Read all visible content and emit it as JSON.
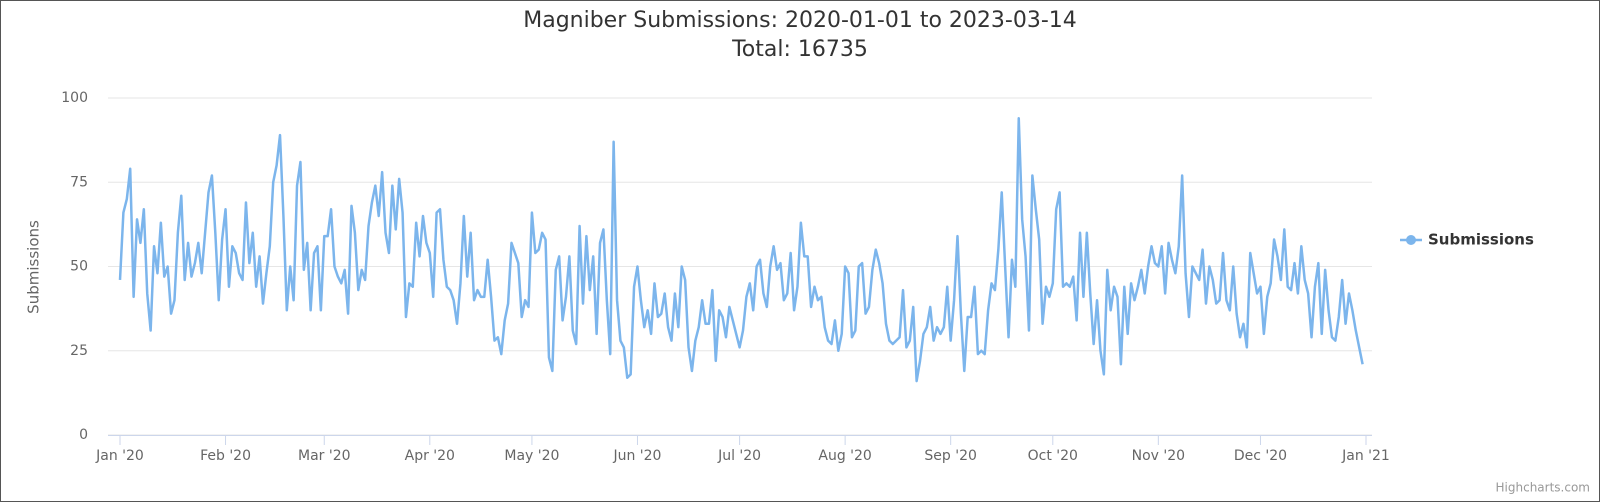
{
  "chart_data": {
    "type": "line",
    "title": "Magniber Submissions: 2020-01-01 to 2023-03-14",
    "subtitle": "Total: 16735",
    "y_label": "Submissions",
    "credits": "Highcharts.com",
    "legend": "right",
    "grid": true,
    "ylim": [
      0,
      100
    ],
    "yticks": [
      0,
      25,
      50,
      75,
      100
    ],
    "xlim": [
      0,
      366
    ],
    "xticks": [
      {
        "value": 0,
        "label": "Jan '20"
      },
      {
        "value": 31,
        "label": "Feb '20"
      },
      {
        "value": 60,
        "label": "Mar '20"
      },
      {
        "value": 91,
        "label": "Apr '20"
      },
      {
        "value": 121,
        "label": "May '20"
      },
      {
        "value": 152,
        "label": "Jun '20"
      },
      {
        "value": 182,
        "label": "Jul '20"
      },
      {
        "value": 213,
        "label": "Aug '20"
      },
      {
        "value": 244,
        "label": "Sep '20"
      },
      {
        "value": 274,
        "label": "Oct '20"
      },
      {
        "value": 305,
        "label": "Nov '20"
      },
      {
        "value": 335,
        "label": "Dec '20"
      },
      {
        "value": 366,
        "label": "Jan '21"
      }
    ],
    "series": [
      {
        "name": "Submissions",
        "color": "#7cb5ec",
        "values": [
          46,
          66,
          70,
          79,
          41,
          64,
          57,
          67,
          42,
          31,
          56,
          48,
          63,
          47,
          50,
          36,
          40,
          60,
          71,
          46,
          57,
          47,
          51,
          57,
          48,
          60,
          72,
          77,
          60,
          40,
          58,
          67,
          44,
          56,
          54,
          48,
          46,
          69,
          51,
          60,
          44,
          53,
          39,
          48,
          56,
          75,
          80,
          89,
          65,
          37,
          50,
          40,
          74,
          81,
          49,
          57,
          37,
          54,
          56,
          37,
          59,
          59,
          67,
          50,
          47,
          45,
          49,
          36,
          68,
          60,
          43,
          49,
          46,
          62,
          69,
          74,
          65,
          78,
          60,
          54,
          74,
          61,
          76,
          66,
          35,
          45,
          44,
          63,
          53,
          65,
          57,
          54,
          41,
          66,
          67,
          52,
          44,
          43,
          40,
          33,
          45,
          65,
          47,
          60,
          40,
          43,
          41,
          41,
          52,
          41,
          28,
          29,
          24,
          34,
          39,
          57,
          54,
          51,
          35,
          40,
          38,
          66,
          54,
          55,
          60,
          58,
          23,
          19,
          49,
          53,
          34,
          41,
          53,
          31,
          27,
          62,
          39,
          59,
          43,
          53,
          30,
          57,
          61,
          40,
          24,
          87,
          40,
          28,
          26,
          17,
          18,
          44,
          50,
          40,
          32,
          37,
          30,
          45,
          35,
          36,
          42,
          32,
          28,
          42,
          32,
          50,
          46,
          26,
          19,
          28,
          32,
          40,
          33,
          33,
          43,
          22,
          37,
          35,
          29,
          38,
          34,
          30,
          26,
          31,
          41,
          45,
          37,
          50,
          52,
          42,
          38,
          50,
          56,
          49,
          51,
          40,
          42,
          54,
          37,
          44,
          63,
          53,
          53,
          38,
          44,
          40,
          41,
          32,
          28,
          27,
          34,
          25,
          30,
          50,
          48,
          29,
          31,
          50,
          51,
          36,
          38,
          49,
          55,
          51,
          45,
          33,
          28,
          27,
          28,
          29,
          43,
          26,
          28,
          38,
          16,
          22,
          30,
          32,
          38,
          28,
          32,
          30,
          32,
          44,
          28,
          40,
          59,
          36,
          19,
          35,
          35,
          44,
          24,
          25,
          24,
          37,
          45,
          43,
          55,
          72,
          50,
          29,
          52,
          44,
          94,
          64,
          53,
          31,
          77,
          67,
          58,
          33,
          44,
          41,
          45,
          67,
          72,
          44,
          45,
          44,
          47,
          34,
          60,
          41,
          60,
          42,
          27,
          40,
          25,
          18,
          49,
          37,
          44,
          41,
          21,
          44,
          30,
          45,
          40,
          44,
          49,
          42,
          50,
          56,
          51,
          50,
          56,
          42,
          57,
          52,
          48,
          56,
          77,
          48,
          35,
          50,
          48,
          46,
          55,
          39,
          50,
          46,
          39,
          40,
          54,
          40,
          37,
          50,
          36,
          29,
          33,
          26,
          54,
          48,
          42,
          44,
          30,
          41,
          45,
          58,
          53,
          46,
          61,
          44,
          43,
          51,
          42,
          56,
          46,
          42,
          29,
          44,
          51,
          30,
          49,
          37,
          29,
          28,
          35,
          46,
          33,
          42,
          37,
          31,
          26,
          21
        ]
      }
    ]
  }
}
